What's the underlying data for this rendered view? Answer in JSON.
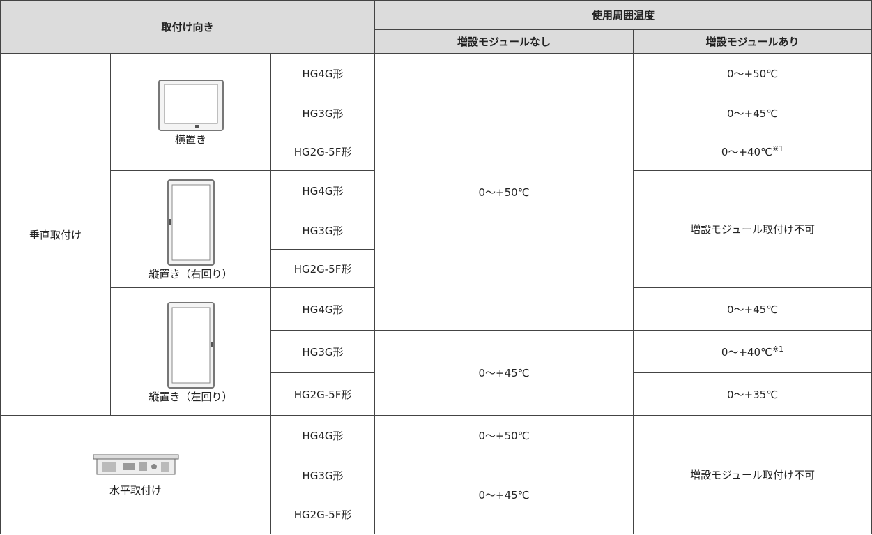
{
  "header": {
    "mounting_direction": "取付け向き",
    "ambient_temperature": "使用周囲温度",
    "without_expansion": "増設モジュールなし",
    "with_expansion": "増設モジュールあり"
  },
  "vertical": {
    "label": "垂直取付け",
    "orientations": [
      {
        "label": "横置き",
        "models": [
          "HG4G形",
          "HG3G形",
          "HG2G-5F形"
        ]
      },
      {
        "label": "縦置き（右回り）",
        "models": [
          "HG4G形",
          "HG3G形",
          "HG2G-5F形"
        ]
      },
      {
        "label": "縦置き（左回り）",
        "models": [
          "HG4G形",
          "HG3G形",
          "HG2G-5F形"
        ]
      }
    ]
  },
  "horizontal": {
    "label": "水平取付け",
    "models": [
      "HG4G形",
      "HG3G形",
      "HG2G-5F形"
    ]
  },
  "without_expansion": [
    "0～+50℃",
    "0～+45℃",
    "0～+50℃",
    "0～+45℃"
  ],
  "with_expansion": [
    {
      "text": "0～+50℃"
    },
    {
      "text": "0～+45℃"
    },
    {
      "text": "0～+40℃",
      "note": "※1"
    },
    {
      "text": "増設モジュール取付け不可"
    },
    {
      "text": "0～+45℃"
    },
    {
      "text": "0～+40℃",
      "note": "※1"
    },
    {
      "text": "0～+35℃"
    },
    {
      "text": "増設モジュール取付け不可"
    }
  ]
}
